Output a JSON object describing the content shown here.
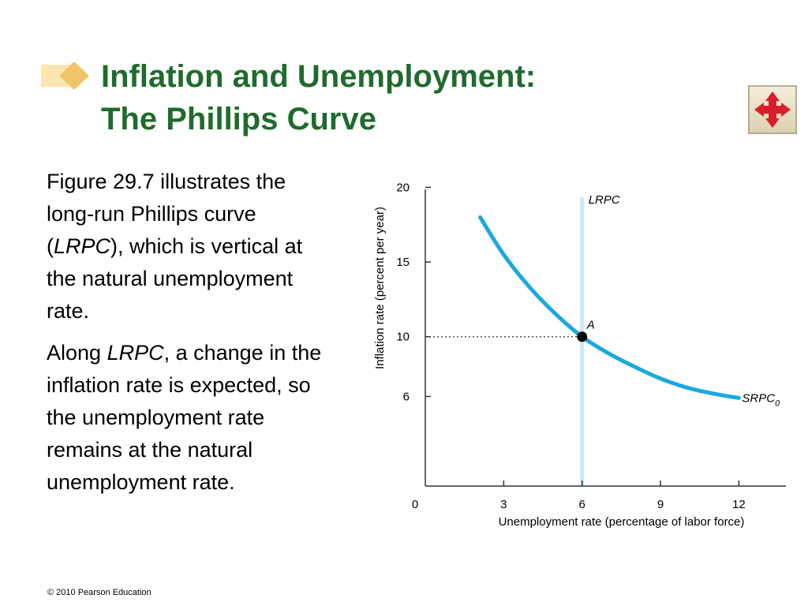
{
  "slide": {
    "title_line1": "Inflation and Unemployment:",
    "title_line2": "The Phillips Curve",
    "paragraph1": {
      "before": "Figure 29.7 illustrates the long-run Phillips curve (",
      "italic": "LRPC",
      "after": "), which is vertical at the natural unemployment rate."
    },
    "paragraph2": {
      "before": "Along ",
      "italic": "LRPC",
      "after": ", a change in the inflation rate is expected, so the unemployment rate remains at the natural unemployment rate."
    },
    "footer": "© 2010 Pearson Education"
  },
  "icons": {
    "title_marker": "diamond-bullet-icon",
    "nav": "four-way-arrows-icon"
  },
  "colors": {
    "title": "#1f6b2d",
    "curve": "#1aa9e0",
    "lrpc_line": "#cde7f6",
    "nav_arrows": "#d81e2a"
  },
  "chart_data": {
    "type": "line",
    "xlabel": "Unemployment rate (percentage of labor force)",
    "ylabel": "Inflation rate (percent per year)",
    "x_ticks": [
      0,
      3,
      6,
      9,
      12
    ],
    "y_ticks": [
      6,
      10,
      15,
      20
    ],
    "xlim": [
      0,
      13.8
    ],
    "ylim": [
      0,
      20.5
    ],
    "series": [
      {
        "name": "SRPC0",
        "label_main": "SRPC",
        "label_sub": "0",
        "x": [
          2.1,
          3.0,
          4.0,
          5.0,
          6.0,
          7.0,
          8.0,
          9.0,
          10.0,
          11.0,
          12.0
        ],
        "y": [
          18.0,
          15.5,
          13.3,
          11.5,
          10.0,
          8.9,
          8.0,
          7.2,
          6.6,
          6.2,
          5.9
        ]
      }
    ],
    "vertical_line": {
      "name": "LRPC",
      "x": 6
    },
    "point": {
      "label": "A",
      "x": 6,
      "y": 10
    },
    "grid": false,
    "guide_lines": "dotted from y-axis to point A"
  }
}
